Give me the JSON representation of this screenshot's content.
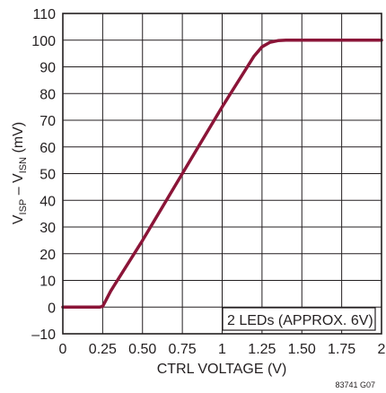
{
  "chart_data": {
    "type": "line",
    "xlabel": "CTRL VOLTAGE (V)",
    "ylabel": {
      "v1": "V",
      "s1": "ISP",
      "mid": " – V",
      "s2": "ISN",
      "unit": " (mV)"
    },
    "xlim": [
      0,
      2
    ],
    "ylim": [
      -10,
      110
    ],
    "x_ticks": [
      0,
      0.25,
      0.5,
      0.75,
      1,
      1.25,
      1.5,
      1.75,
      2
    ],
    "x_tick_labels": [
      "0",
      "0.25",
      "0.50",
      "0.75",
      "1",
      "1.25",
      "1.50",
      "1.75",
      "2"
    ],
    "y_ticks": [
      -10,
      0,
      10,
      20,
      30,
      40,
      50,
      60,
      70,
      80,
      90,
      100,
      110
    ],
    "y_tick_labels": [
      "–10",
      "0",
      "10",
      "20",
      "30",
      "40",
      "50",
      "60",
      "70",
      "80",
      "90",
      "100",
      "110"
    ],
    "grid": true,
    "annotation": "2 LEDs (APPROX. 6V)",
    "figure_code": "83741 G07",
    "series": [
      {
        "color": "#8b1538",
        "x": [
          0,
          0.23,
          0.25,
          0.27,
          0.3,
          0.5,
          0.75,
          1.0,
          1.2,
          1.25,
          1.3,
          1.35,
          1.4,
          1.5,
          2.0
        ],
        "y": [
          0,
          0,
          0.3,
          2.5,
          6,
          25,
          50,
          75,
          94,
          97.5,
          99.2,
          99.8,
          100,
          100,
          100
        ]
      }
    ]
  }
}
